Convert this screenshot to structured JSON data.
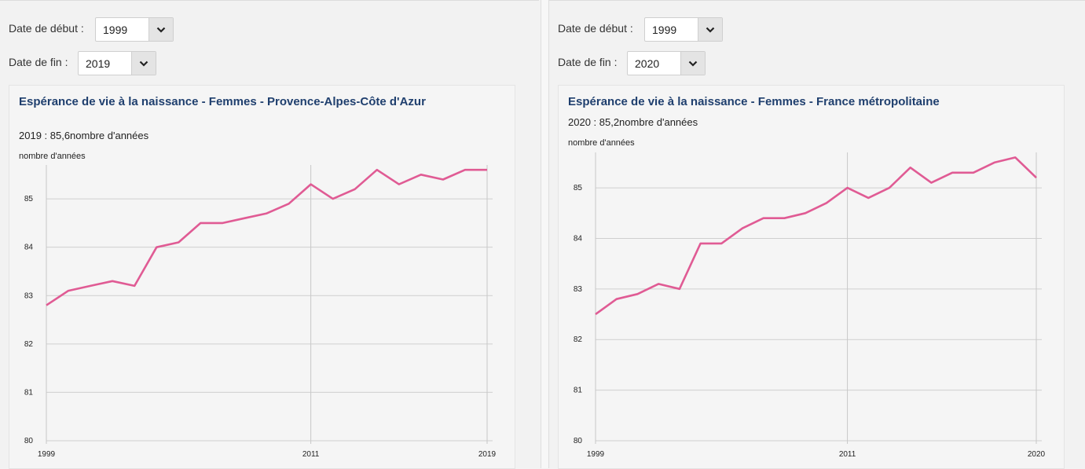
{
  "panels": [
    {
      "start_label": "Date de début :",
      "start_value": "1999",
      "end_label": "Date de fin :",
      "end_value": "2019",
      "title": "Espérance de vie à la naissance - Femmes - Provence-Alpes-Côte d'Azur",
      "summary": "2019 : 85,6nombre d'années",
      "unit": "nombre d'années"
    },
    {
      "start_label": "Date de début :",
      "start_value": "1999",
      "end_label": "Date de fin :",
      "end_value": "2020",
      "title": "Espérance de vie à la naissance - Femmes - France métropolitaine",
      "summary": "2020 : 85,2nombre d'années",
      "unit": "nombre d'années"
    }
  ],
  "chart_data": [
    {
      "type": "line",
      "title": "Espérance de vie à la naissance - Femmes - Provence-Alpes-Côte d'Azur",
      "ylabel": "nombre d'années",
      "x": [
        1999,
        2000,
        2001,
        2002,
        2003,
        2004,
        2005,
        2006,
        2007,
        2008,
        2009,
        2010,
        2011,
        2012,
        2013,
        2014,
        2015,
        2016,
        2017,
        2018,
        2019
      ],
      "values": [
        82.8,
        83.1,
        83.2,
        83.3,
        83.2,
        84.0,
        84.1,
        84.5,
        84.5,
        84.6,
        84.7,
        84.9,
        85.3,
        85.0,
        85.2,
        85.6,
        85.3,
        85.5,
        85.4,
        85.6,
        85.6
      ],
      "xlim": [
        1999,
        2019
      ],
      "ylim": [
        80,
        85.7
      ],
      "xticks": [
        1999,
        2011,
        2019
      ],
      "yticks": [
        80,
        81,
        82,
        83,
        84,
        85
      ],
      "color": "#e05b94",
      "grid": true
    },
    {
      "type": "line",
      "title": "Espérance de vie à la naissance - Femmes - France métropolitaine",
      "ylabel": "nombre d'années",
      "x": [
        1999,
        2000,
        2001,
        2002,
        2003,
        2004,
        2005,
        2006,
        2007,
        2008,
        2009,
        2010,
        2011,
        2012,
        2013,
        2014,
        2015,
        2016,
        2017,
        2018,
        2019,
        2020
      ],
      "values": [
        82.5,
        82.8,
        82.9,
        83.1,
        83.0,
        83.9,
        83.9,
        84.2,
        84.4,
        84.4,
        84.5,
        84.7,
        85.0,
        84.8,
        85.0,
        85.4,
        85.1,
        85.3,
        85.3,
        85.5,
        85.6,
        85.2
      ],
      "xlim": [
        1999,
        2020
      ],
      "ylim": [
        80,
        85.7
      ],
      "xticks": [
        1999,
        2011,
        2020
      ],
      "yticks": [
        80,
        81,
        82,
        83,
        84,
        85
      ],
      "color": "#e05b94",
      "grid": true
    }
  ]
}
